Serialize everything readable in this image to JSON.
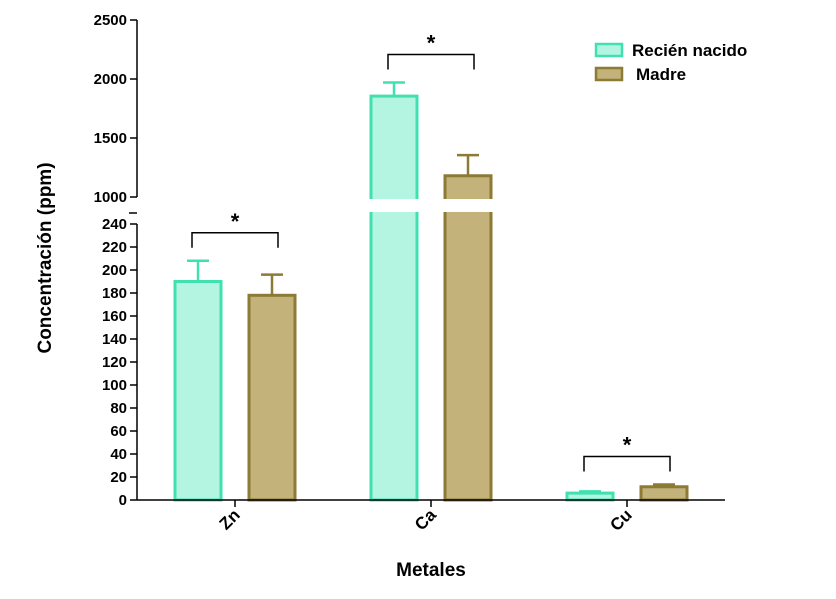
{
  "chart_data": {
    "type": "bar",
    "xlabel": "Metales",
    "ylabel": "Concentración (ppm)",
    "categories": [
      "Zn",
      "Ca",
      "Cu"
    ],
    "series": [
      {
        "name": "Recién nacido",
        "values": [
          190,
          1855,
          6
        ],
        "errors": [
          18,
          115,
          1.5
        ],
        "fill": "#b3f5e0",
        "stroke": "#40e0b0"
      },
      {
        "name": "Madre",
        "values": [
          178,
          1180,
          11.5
        ],
        "errors": [
          18,
          175,
          2
        ],
        "fill": "#c3b37b",
        "stroke": "#8c7a35"
      }
    ],
    "y_axis": {
      "broken": true,
      "lower_segment": {
        "range": [
          0,
          245
        ],
        "ticks": [
          0,
          20,
          40,
          60,
          80,
          100,
          120,
          140,
          160,
          180,
          200,
          220,
          240
        ]
      },
      "upper_segment": {
        "range": [
          1000,
          2500
        ],
        "ticks": [
          1000,
          1500,
          2000,
          2500
        ]
      }
    },
    "significance": [
      {
        "category": "Zn",
        "label": "*"
      },
      {
        "category": "Ca",
        "label": "*"
      },
      {
        "category": "Cu",
        "label": "*"
      }
    ],
    "legend_position": "top-right",
    "grid": false
  }
}
